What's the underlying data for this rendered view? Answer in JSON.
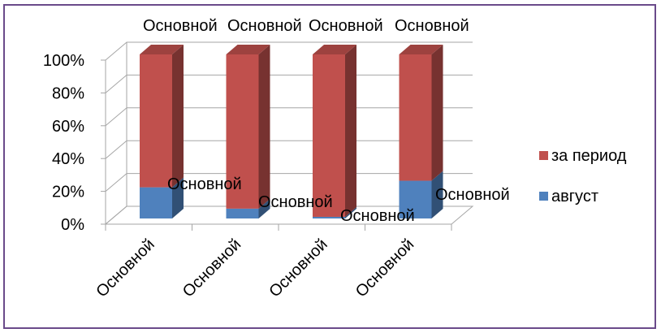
{
  "chart_data": {
    "type": "bar",
    "subtype": "stacked-100-3d-column",
    "title": "",
    "xlabel": "",
    "ylabel": "",
    "ylim": [
      0,
      100
    ],
    "y_ticks": [
      "0%",
      "20%",
      "40%",
      "60%",
      "80%",
      "100%"
    ],
    "grid": true,
    "legend_position": "right",
    "categories": [
      "Основной",
      "Основной",
      "Основной",
      "Основной"
    ],
    "series": [
      {
        "name": "август",
        "color": "#4f81bd",
        "values": [
          19,
          6,
          1,
          23
        ]
      },
      {
        "name": "за период",
        "color": "#c0504d",
        "values": [
          81,
          94,
          99,
          77
        ]
      }
    ],
    "data_labels": {
      "август": [
        "Основной",
        "Основной",
        "Основной",
        "Основной"
      ],
      "за период": [
        "Основной",
        "Основной",
        "Основной",
        "Основной"
      ]
    },
    "legend": [
      "за период",
      "август"
    ]
  }
}
